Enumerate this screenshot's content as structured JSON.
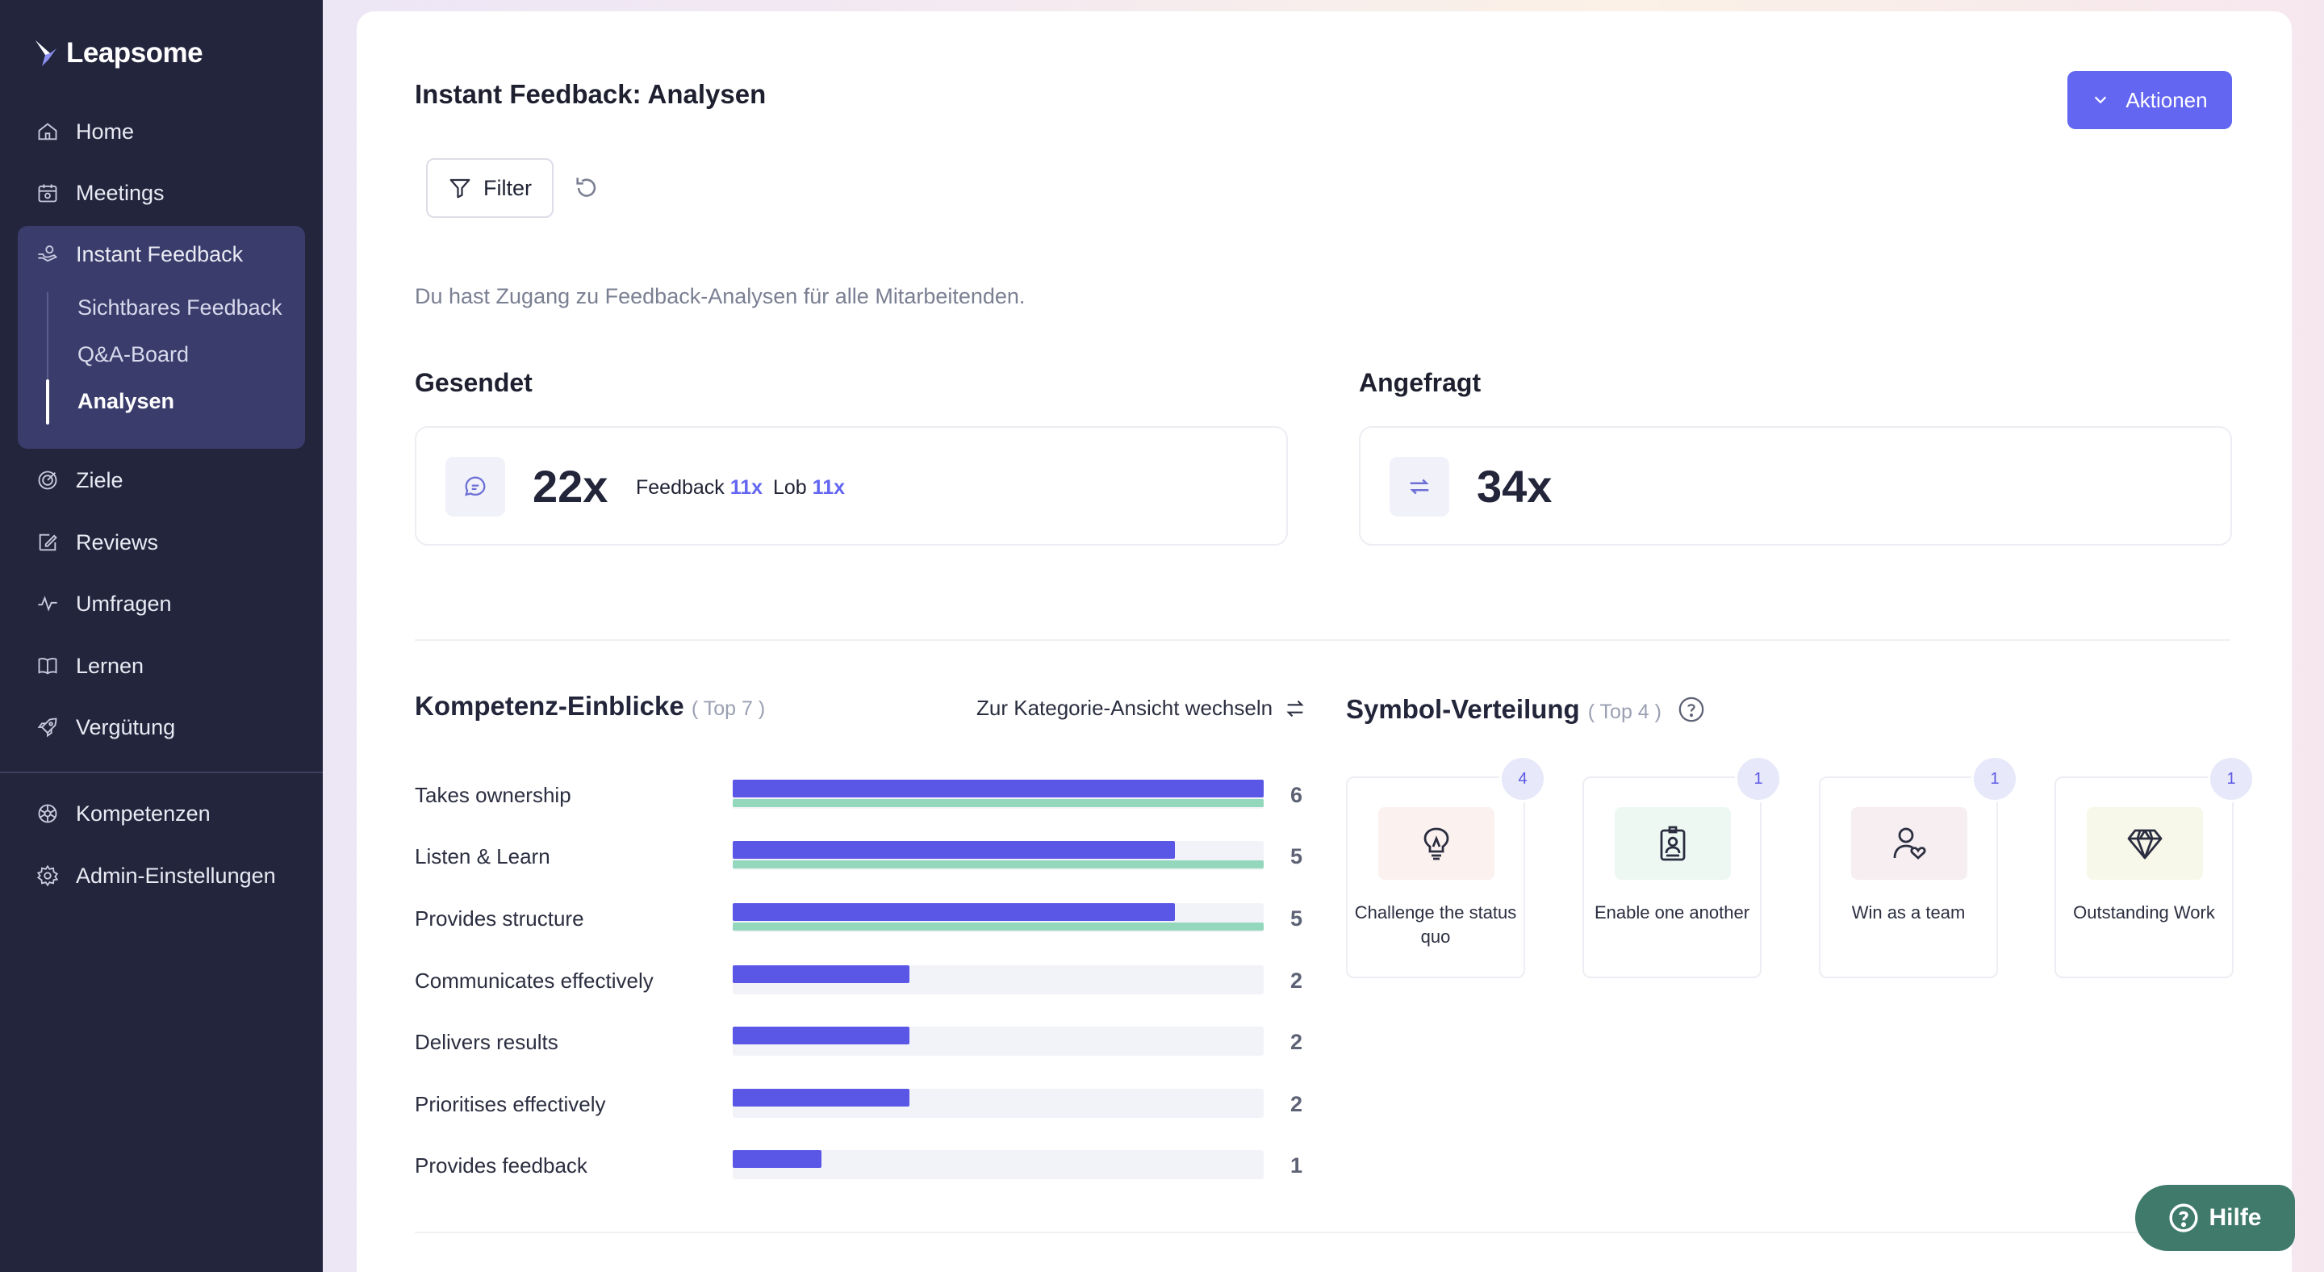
{
  "brand": {
    "name": "Leapsome"
  },
  "sidebar": {
    "items": [
      {
        "label": "Home",
        "icon": "home-icon"
      },
      {
        "label": "Meetings",
        "icon": "calendar-icon"
      },
      {
        "label": "Instant Feedback",
        "icon": "feedback-hand-icon"
      },
      {
        "label": "Ziele",
        "icon": "target-icon"
      },
      {
        "label": "Reviews",
        "icon": "edit-icon"
      },
      {
        "label": "Umfragen",
        "icon": "pulse-icon"
      },
      {
        "label": "Lernen",
        "icon": "book-icon"
      },
      {
        "label": "Vergütung",
        "icon": "rocket-icon"
      },
      {
        "label": "Kompetenzen",
        "icon": "network-icon"
      },
      {
        "label": "Admin-Einstellungen",
        "icon": "gear-icon"
      }
    ],
    "sub_items": [
      {
        "label": "Sichtbares Feedback"
      },
      {
        "label": "Q&A-Board"
      },
      {
        "label": "Analysen"
      }
    ]
  },
  "header": {
    "title": "Instant Feedback: Analysen",
    "actions_label": "Aktionen",
    "filter_label": "Filter"
  },
  "access_note": "Du hast Zugang zu Feedback-Analysen für alle Mitarbeitenden.",
  "sent": {
    "title": "Gesendet",
    "count": "22x",
    "feedback_label": "Feedback",
    "feedback_count": "11x",
    "praise_label": "Lob",
    "praise_count": "11x"
  },
  "requested": {
    "title": "Angefragt",
    "count": "34x"
  },
  "competencies": {
    "title": "Kompetenz-Einblicke",
    "top_label": "( Top 7 )",
    "switch_label": "Zur Kategorie-Ansicht wechseln",
    "rows": [
      {
        "label": "Takes ownership",
        "value": "6",
        "blue": 1.0,
        "green": 1.0
      },
      {
        "label": "Listen & Learn",
        "value": "5",
        "blue": 0.833,
        "green": 1.0
      },
      {
        "label": "Provides structure",
        "value": "5",
        "blue": 0.833,
        "green": 1.0
      },
      {
        "label": "Communicates effectively",
        "value": "2",
        "blue": 0.333,
        "green": 0
      },
      {
        "label": "Delivers results",
        "value": "2",
        "blue": 0.333,
        "green": 0
      },
      {
        "label": "Prioritises effectively",
        "value": "2",
        "blue": 0.333,
        "green": 0
      },
      {
        "label": "Provides feedback",
        "value": "1",
        "blue": 0.167,
        "green": 0
      }
    ]
  },
  "symbols": {
    "title": "Symbol-Verteilung",
    "top_label": "( Top 4 )",
    "items": [
      {
        "label": "Challenge the status quo",
        "count": "4",
        "icon": "lightbulb-icon",
        "bg": "#fbf1ef"
      },
      {
        "label": "Enable one another",
        "count": "1",
        "icon": "id-badge-icon",
        "bg": "#eef8f3"
      },
      {
        "label": "Win as a team",
        "count": "1",
        "icon": "person-heart-icon",
        "bg": "#f6eef1"
      },
      {
        "label": "Outstanding Work",
        "count": "1",
        "icon": "diamond-icon",
        "bg": "#f7f7ea"
      }
    ]
  },
  "help": {
    "label": "Hilfe"
  },
  "colors": {
    "accent": "#6366f1",
    "sidebar_bg": "#23253d",
    "bar_blue": "#5b57e6",
    "bar_green": "#93d7bd",
    "help_bg": "#3f7a6b"
  }
}
